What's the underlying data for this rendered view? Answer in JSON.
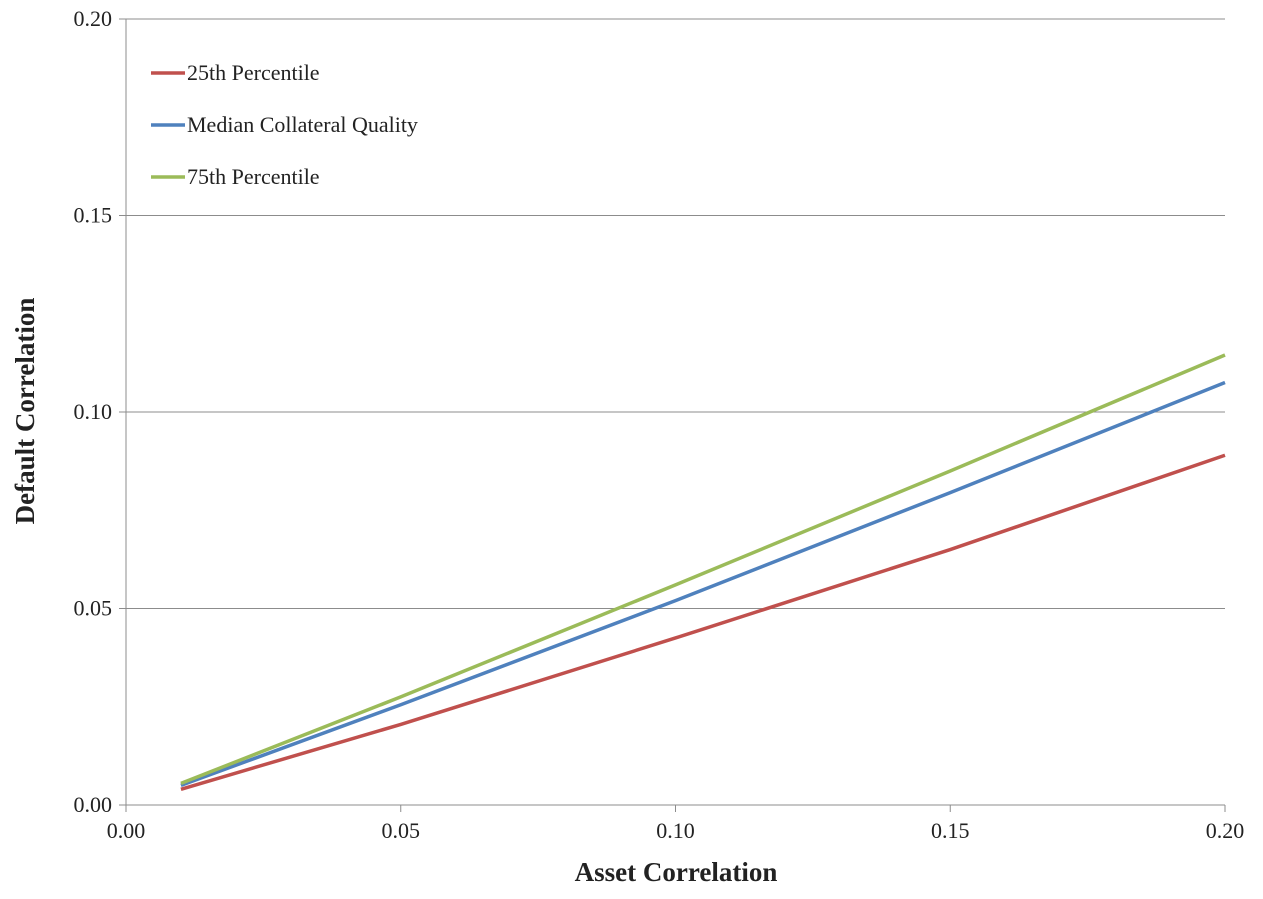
{
  "chart_data": {
    "type": "line",
    "title": "",
    "xlabel": "Asset Correlation",
    "ylabel": "Default Correlation",
    "xlim": [
      0,
      0.2
    ],
    "ylim": [
      0,
      0.2
    ],
    "x_ticks": [
      "0.00",
      "0.05",
      "0.10",
      "0.15",
      "0.20"
    ],
    "y_ticks": [
      "0.00",
      "0.05",
      "0.10",
      "0.15",
      "0.20"
    ],
    "grid": "horizontal",
    "legend_position": "top-left",
    "x": [
      0.01,
      0.05,
      0.1,
      0.15,
      0.2
    ],
    "series": [
      {
        "name": "25th Percentile",
        "color": "#c0504d",
        "values": [
          0.004,
          0.0205,
          0.0425,
          0.065,
          0.089
        ]
      },
      {
        "name": "Median Collateral Quality",
        "color": "#4f81bd",
        "values": [
          0.005,
          0.0255,
          0.052,
          0.0795,
          0.1075
        ]
      },
      {
        "name": "75th Percentile",
        "color": "#9bbb59",
        "values": [
          0.0055,
          0.0275,
          0.056,
          0.085,
          0.1145
        ]
      }
    ]
  }
}
